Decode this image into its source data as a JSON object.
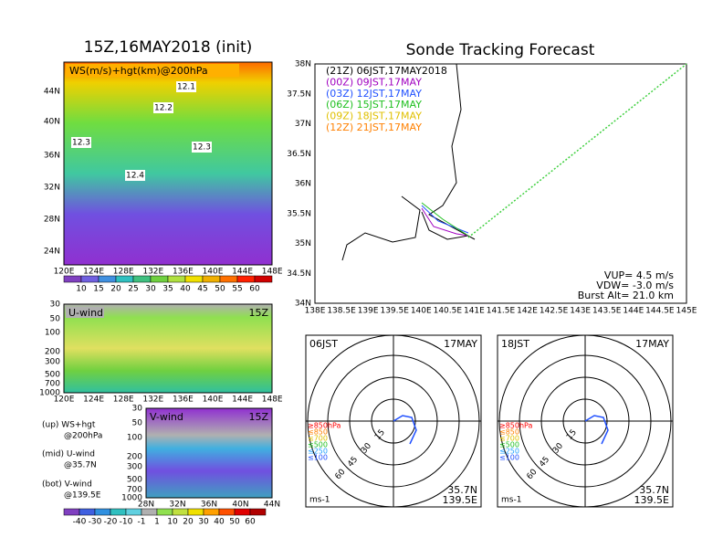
{
  "left": {
    "title": "15Z,16MAY2018 (init)",
    "map_label": "WS(m/s)+hgt(km)@200hPa",
    "contour_labels": [
      "12.1",
      "12.2",
      "12.3",
      "12.3",
      "12.4"
    ],
    "lat_labels": [
      "44N",
      "40N",
      "36N",
      "32N",
      "28N",
      "24N"
    ],
    "lon_labels": [
      "120E",
      "124E",
      "128E",
      "132E",
      "136E",
      "140E",
      "144E",
      "148E"
    ],
    "colorbar": [
      "10",
      "15",
      "20",
      "25",
      "30",
      "35",
      "40",
      "45",
      "50",
      "55",
      "60"
    ]
  },
  "u_wind": {
    "title": "U-wind",
    "time": "15Z",
    "p_labels": [
      "30",
      "50",
      "100",
      "200",
      "300",
      "500",
      "700",
      "1000"
    ],
    "lon_labels": [
      "120E",
      "124E",
      "128E",
      "132E",
      "136E",
      "140E",
      "144E",
      "148E"
    ]
  },
  "v_wind": {
    "title": "V-wind",
    "time": "15Z",
    "p_labels": [
      "30",
      "50",
      "100",
      "200",
      "300",
      "500",
      "700",
      "1000"
    ],
    "lat_labels": [
      "28N",
      "32N",
      "36N",
      "40N",
      "44N"
    ]
  },
  "notes": [
    "(up) WS+hgt",
    "@200hPa",
    "(mid) U-wind",
    "@35.7N",
    "(bot) V-wind",
    "@139.5E"
  ],
  "colorbar2": [
    "-40",
    "-30",
    "-20",
    "-10",
    "-1",
    "1",
    "10",
    "20",
    "30",
    "40",
    "50",
    "60"
  ],
  "track": {
    "title": "Sonde Tracking Forecast",
    "times": [
      {
        "text": "(21Z)  06JST,17MAY2018",
        "color": "#000000"
      },
      {
        "text": "(00Z)  09JST,17MAY",
        "color": "#a000c0"
      },
      {
        "text": "(03Z)  12JST,17MAY",
        "color": "#2050ff"
      },
      {
        "text": "(06Z)  15JST,17MAY",
        "color": "#20c020"
      },
      {
        "text": "(09Z)  18JST,17MAY",
        "color": "#e0c000"
      },
      {
        "text": "(12Z)  21JST,17MAY",
        "color": "#ff8000"
      }
    ],
    "lat_labels": [
      "38N",
      "37.5N",
      "37N",
      "36.5N",
      "36N",
      "35.5N",
      "35N",
      "34.5N",
      "34N"
    ],
    "lon_labels": [
      "138E",
      "138.5E",
      "139E",
      "139.5E",
      "140E",
      "140.5E",
      "141E",
      "141.5E",
      "142E",
      "142.5E",
      "143E",
      "143.5E",
      "144E",
      "144.5E",
      "145E"
    ],
    "info": [
      "VUP= 4.5 m/s",
      "VDW= -3.0 m/s",
      "Burst Alt= 21.0 km"
    ]
  },
  "hodographs": [
    {
      "time": "06JST",
      "date": "17MAY",
      "levels": [
        "≥850hPa",
        "≤850",
        "≤700",
        "≤500",
        "≤250",
        "≤100"
      ],
      "ring_labels": [
        "15",
        "30",
        "45",
        "60"
      ],
      "unit": "ms-1",
      "lat": "35.7N",
      "lon": "139.5E"
    },
    {
      "time": "18JST",
      "date": "17MAY",
      "levels": [
        "≥850hPa",
        "≤850",
        "≤700",
        "≤500",
        "≤250",
        "≤100"
      ],
      "ring_labels": [
        "15",
        "30",
        "45",
        "60"
      ],
      "unit": "ms-1",
      "lat": "35.7N",
      "lon": "139.5E"
    }
  ]
}
